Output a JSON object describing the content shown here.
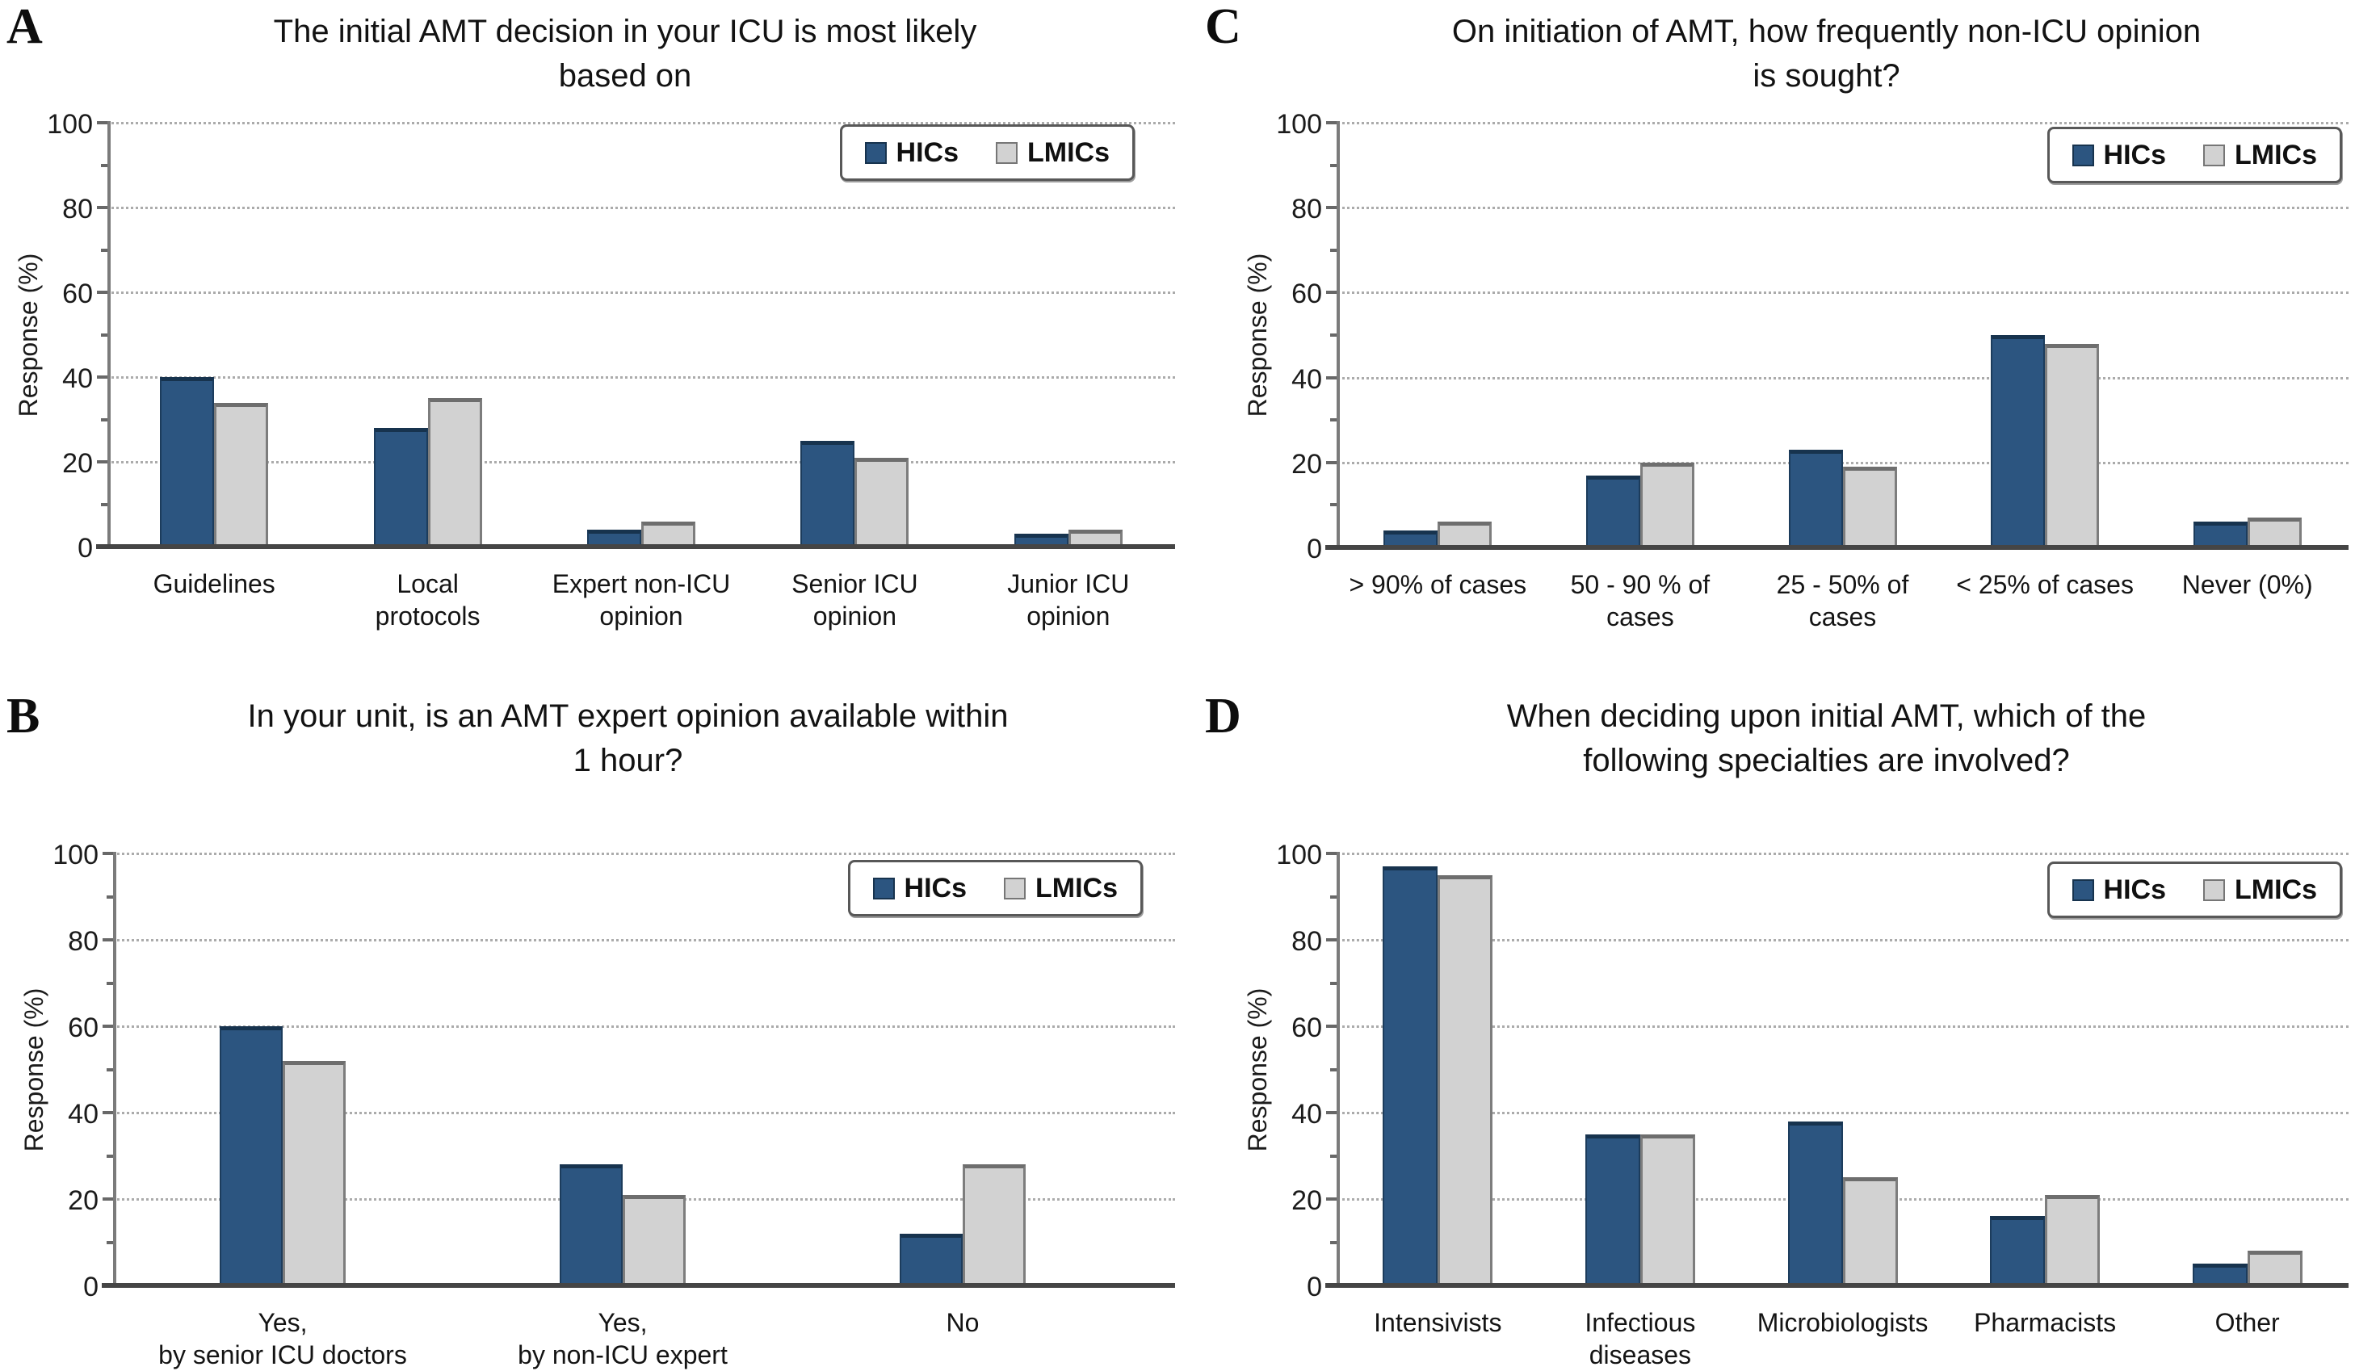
{
  "figure": {
    "legend_labels": [
      "HICs",
      "LMICs"
    ],
    "colors": {
      "hics": "#2c5580",
      "lmics": "#d2d2d2"
    },
    "gridline_color": "#ababab",
    "axis_color": "#7b7b7b"
  },
  "chart_data": [
    {
      "panel": "A",
      "type": "bar",
      "title": "The initial AMT decision in your ICU is most likely\nbased on",
      "ylabel": "Response (%)",
      "ylim": [
        0,
        100
      ],
      "yticks": [
        0,
        20,
        40,
        60,
        80,
        100
      ],
      "minor_yticks": [
        10,
        30,
        50,
        70,
        90
      ],
      "grid": "horizontal-dotted",
      "legend_position": "top-right",
      "categories": [
        "Guidelines",
        "Local\nprotocols",
        "Expert non-ICU\nopinion",
        "Senior ICU\nopinion",
        "Junior ICU\nopinion"
      ],
      "series": [
        {
          "name": "HICs",
          "color": "#2c5580",
          "values": [
            40,
            28,
            4,
            25,
            3
          ]
        },
        {
          "name": "LMICs",
          "color": "#d2d2d2",
          "values": [
            34,
            35,
            6,
            21,
            4
          ]
        }
      ]
    },
    {
      "panel": "B",
      "type": "bar",
      "title": "In your unit, is an AMT expert opinion available within\n1 hour?",
      "ylabel": "Response (%)",
      "ylim": [
        0,
        100
      ],
      "yticks": [
        0,
        20,
        40,
        60,
        80,
        100
      ],
      "minor_yticks": [
        10,
        30,
        50,
        70,
        90
      ],
      "grid": "horizontal-dotted",
      "legend_position": "top-right",
      "categories": [
        "Yes,\nby senior ICU doctors",
        "Yes,\nby non-ICU expert",
        "No"
      ],
      "series": [
        {
          "name": "HICs",
          "color": "#2c5580",
          "values": [
            60,
            28,
            12
          ]
        },
        {
          "name": "LMICs",
          "color": "#d2d2d2",
          "values": [
            52,
            21,
            28
          ]
        }
      ]
    },
    {
      "panel": "C",
      "type": "bar",
      "title": "On initiation of AMT, how frequently non-ICU opinion\nis sought?",
      "ylabel": "Response (%)",
      "ylim": [
        0,
        100
      ],
      "yticks": [
        0,
        20,
        40,
        60,
        80,
        100
      ],
      "minor_yticks": [
        10,
        30,
        50,
        70,
        90
      ],
      "grid": "horizontal-dotted",
      "legend_position": "top-right",
      "categories": [
        "> 90% of cases",
        "50 - 90 % of\ncases",
        "25 - 50% of\ncases",
        "< 25% of cases",
        "Never (0%)"
      ],
      "series": [
        {
          "name": "HICs",
          "color": "#2c5580",
          "values": [
            4,
            17,
            23,
            50,
            6
          ]
        },
        {
          "name": "LMICs",
          "color": "#d2d2d2",
          "values": [
            6,
            20,
            19,
            48,
            7
          ]
        }
      ]
    },
    {
      "panel": "D",
      "type": "bar",
      "title": "When deciding upon initial AMT, which of the\nfollowing specialties are involved?",
      "ylabel": "Response (%)",
      "ylim": [
        0,
        100
      ],
      "yticks": [
        0,
        20,
        40,
        60,
        80,
        100
      ],
      "minor_yticks": [
        10,
        30,
        50,
        70,
        90
      ],
      "grid": "horizontal-dotted",
      "legend_position": "top-right",
      "categories": [
        "Intensivists",
        "Infectious\ndiseases",
        "Microbiologists",
        "Pharmacists",
        "Other"
      ],
      "series": [
        {
          "name": "HICs",
          "color": "#2c5580",
          "values": [
            97,
            35,
            38,
            16,
            5
          ]
        },
        {
          "name": "LMICs",
          "color": "#d2d2d2",
          "values": [
            95,
            35,
            25,
            21,
            8
          ]
        }
      ]
    }
  ]
}
